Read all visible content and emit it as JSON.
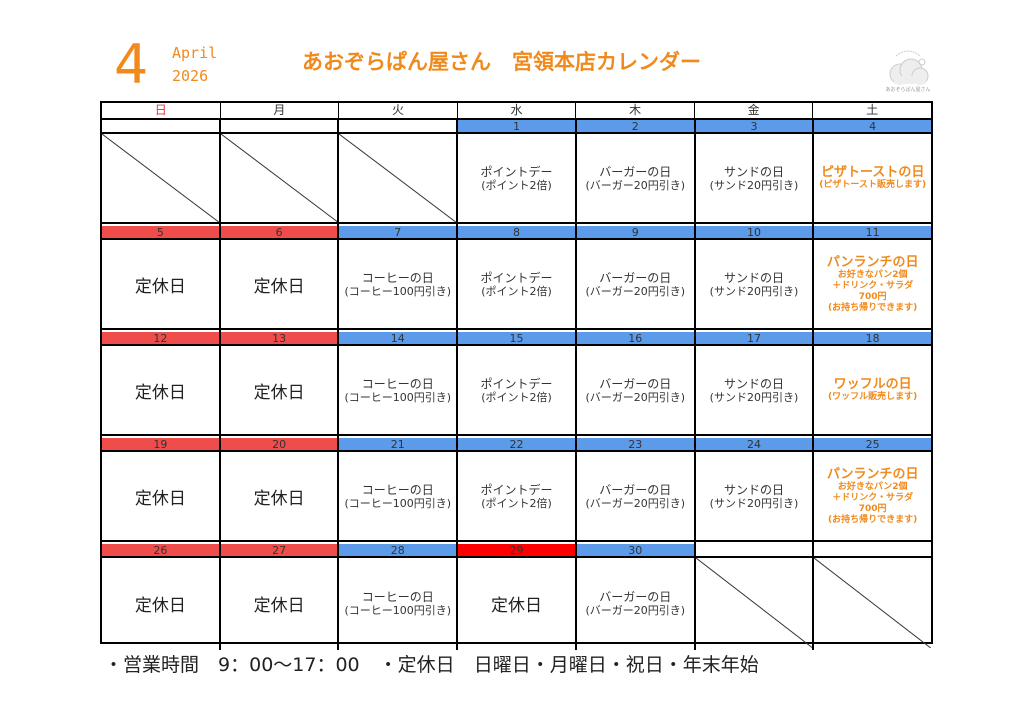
{
  "header": {
    "month": "4",
    "month_name": "April",
    "year": "2026",
    "title": "あおぞらぱん屋さん　宮領本店カレンダー",
    "logo_text": "あおぞらぱん屋さん"
  },
  "weekdays": [
    "日",
    "月",
    "火",
    "水",
    "木",
    "金",
    "土"
  ],
  "weeks": [
    {
      "days": [
        {
          "num": "",
          "bar": "none",
          "type": "empty"
        },
        {
          "num": "",
          "bar": "none",
          "type": "empty"
        },
        {
          "num": "",
          "bar": "none",
          "type": "empty"
        },
        {
          "num": "1",
          "bar": "blue",
          "type": "event",
          "line1": "ポイントデー",
          "line2": "(ポイント2倍)"
        },
        {
          "num": "2",
          "bar": "blue",
          "type": "event",
          "line1": "バーガーの日",
          "line2": "(バーガー20円引き)"
        },
        {
          "num": "3",
          "bar": "blue",
          "type": "event",
          "line1": "サンドの日",
          "line2": "(サンド20円引き)"
        },
        {
          "num": "4",
          "bar": "blue",
          "type": "sat",
          "line1": "ピザトーストの日",
          "lines": [
            "(ピザトースト販売します)"
          ]
        }
      ]
    },
    {
      "days": [
        {
          "num": "5",
          "bar": "red",
          "type": "closed",
          "label": "定休日"
        },
        {
          "num": "6",
          "bar": "red",
          "type": "closed",
          "label": "定休日"
        },
        {
          "num": "7",
          "bar": "blue",
          "type": "event",
          "line1": "コーヒーの日",
          "line2": "(コーヒー100円引き)"
        },
        {
          "num": "8",
          "bar": "blue",
          "type": "event",
          "line1": "ポイントデー",
          "line2": "(ポイント2倍)"
        },
        {
          "num": "9",
          "bar": "blue",
          "type": "event",
          "line1": "バーガーの日",
          "line2": "(バーガー20円引き)"
        },
        {
          "num": "10",
          "bar": "blue",
          "type": "event",
          "line1": "サンドの日",
          "line2": "(サンド20円引き)"
        },
        {
          "num": "11",
          "bar": "blue",
          "type": "sat",
          "line1": "パンランチの日",
          "lines": [
            "お好きなパン2個",
            "＋ドリンク・サラダ",
            "700円",
            "(お持ち帰りできます)"
          ]
        }
      ]
    },
    {
      "days": [
        {
          "num": "12",
          "bar": "red",
          "type": "closed",
          "label": "定休日"
        },
        {
          "num": "13",
          "bar": "red",
          "type": "closed",
          "label": "定休日"
        },
        {
          "num": "14",
          "bar": "blue",
          "type": "event",
          "line1": "コーヒーの日",
          "line2": "(コーヒー100円引き)"
        },
        {
          "num": "15",
          "bar": "blue",
          "type": "event",
          "line1": "ポイントデー",
          "line2": "(ポイント2倍)"
        },
        {
          "num": "16",
          "bar": "blue",
          "type": "event",
          "line1": "バーガーの日",
          "line2": "(バーガー20円引き)"
        },
        {
          "num": "17",
          "bar": "blue",
          "type": "event",
          "line1": "サンドの日",
          "line2": "(サンド20円引き)"
        },
        {
          "num": "18",
          "bar": "blue",
          "type": "sat",
          "line1": "ワッフルの日",
          "lines": [
            "(ワッフル販売します)"
          ]
        }
      ]
    },
    {
      "days": [
        {
          "num": "19",
          "bar": "red",
          "type": "closed",
          "label": "定休日"
        },
        {
          "num": "20",
          "bar": "red",
          "type": "closed",
          "label": "定休日"
        },
        {
          "num": "21",
          "bar": "blue",
          "type": "event",
          "line1": "コーヒーの日",
          "line2": "(コーヒー100円引き)"
        },
        {
          "num": "22",
          "bar": "blue",
          "type": "event",
          "line1": "ポイントデー",
          "line2": "(ポイント2倍)"
        },
        {
          "num": "23",
          "bar": "blue",
          "type": "event",
          "line1": "バーガーの日",
          "line2": "(バーガー20円引き)"
        },
        {
          "num": "24",
          "bar": "blue",
          "type": "event",
          "line1": "サンドの日",
          "line2": "(サンド20円引き)"
        },
        {
          "num": "25",
          "bar": "blue",
          "type": "sat",
          "line1": "パンランチの日",
          "lines": [
            "お好きなパン2個",
            "＋ドリンク・サラダ",
            "700円",
            "(お持ち帰りできます)"
          ]
        }
      ]
    },
    {
      "days": [
        {
          "num": "26",
          "bar": "red",
          "type": "closed",
          "label": "定休日"
        },
        {
          "num": "27",
          "bar": "red",
          "type": "closed",
          "label": "定休日"
        },
        {
          "num": "28",
          "bar": "blue",
          "type": "event",
          "line1": "コーヒーの日",
          "line2": "(コーヒー100円引き)"
        },
        {
          "num": "29",
          "bar": "bright",
          "type": "closed",
          "label": "定休日"
        },
        {
          "num": "30",
          "bar": "blue",
          "type": "event",
          "line1": "バーガーの日",
          "line2": "(バーガー20円引き)"
        },
        {
          "num": "",
          "bar": "none",
          "type": "empty"
        },
        {
          "num": "",
          "bar": "none",
          "type": "empty"
        }
      ]
    }
  ],
  "footer": {
    "hours_label": "・営業時間",
    "hours": "9：00～17：00",
    "closed_label": "・定休日",
    "closed_days": "日曜日・月曜日・祝日・年末年始"
  },
  "colors": {
    "accent": "#f08a1c",
    "weekday_bar": "#5b9bea",
    "holiday_bar": "#ef4c4c",
    "special_holiday_bar": "#ff0000"
  }
}
